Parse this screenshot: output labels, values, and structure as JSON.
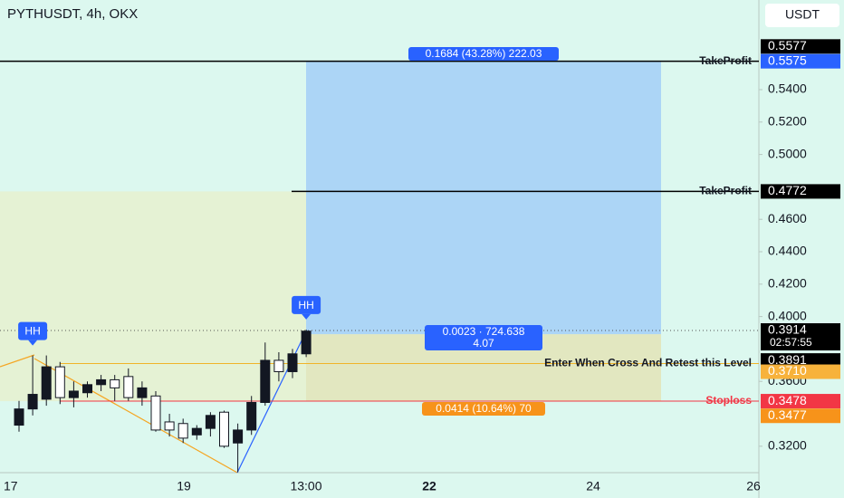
{
  "chart_data": {
    "type": "candlestick",
    "title": "PYTHUSDT, 4h, OKX",
    "currency": "USDT",
    "ylim": [
      0.3037,
      0.5953
    ],
    "yticks": [
      {
        "value": 0.32,
        "label": "0.3200"
      },
      {
        "value": 0.36,
        "label": "0.3600"
      },
      {
        "value": 0.4,
        "label": "0.4000"
      },
      {
        "value": 0.42,
        "label": "0.4200"
      },
      {
        "value": 0.44,
        "label": "0.4400"
      },
      {
        "value": 0.46,
        "label": "0.4600"
      },
      {
        "value": 0.5,
        "label": "0.5000"
      },
      {
        "value": 0.52,
        "label": "0.5200"
      },
      {
        "value": 0.54,
        "label": "0.5400"
      }
    ],
    "x_labels": [
      "17",
      "19",
      "13:00",
      "22",
      "24",
      "26"
    ],
    "up_color": "#131722",
    "down_color": "#ffffff",
    "open": [
      0.333,
      0.343,
      0.349,
      0.369,
      0.35,
      0.353,
      0.358,
      0.361,
      0.363,
      0.35,
      0.351,
      0.335,
      0.334,
      0.327,
      0.331,
      0.341,
      0.322,
      0.33,
      0.347,
      0.373,
      0.366,
      0.377
    ],
    "high": [
      0.348,
      0.376,
      0.376,
      0.372,
      0.36,
      0.36,
      0.364,
      0.364,
      0.368,
      0.36,
      0.354,
      0.34,
      0.337,
      0.333,
      0.341,
      0.342,
      0.334,
      0.351,
      0.384,
      0.378,
      0.38,
      0.392
    ],
    "low": [
      0.329,
      0.339,
      0.345,
      0.346,
      0.344,
      0.35,
      0.354,
      0.348,
      0.348,
      0.345,
      0.329,
      0.326,
      0.322,
      0.324,
      0.326,
      0.319,
      0.304,
      0.327,
      0.345,
      0.36,
      0.362,
      0.375
    ],
    "close": [
      0.343,
      0.352,
      0.369,
      0.35,
      0.354,
      0.358,
      0.361,
      0.356,
      0.35,
      0.356,
      0.33,
      0.33,
      0.325,
      0.331,
      0.339,
      0.32,
      0.33,
      0.347,
      0.373,
      0.366,
      0.377,
      0.391
    ],
    "levels": [
      {
        "name": "TakeProfit",
        "value": 0.5575,
        "color": "#000000"
      },
      {
        "name": "TakeProfit",
        "value": 0.4772,
        "color": "#000000"
      },
      {
        "name": "Enter When Cross And Retest this Level",
        "value": 0.371,
        "color": "#f0b429"
      },
      {
        "name": "Stoploss",
        "value": 0.3478,
        "color": "#f23645"
      }
    ],
    "price_tags": [
      {
        "value": 0.5577,
        "label": "0.5577",
        "color": "#000000"
      },
      {
        "value": 0.5575,
        "label": "0.5575",
        "color": "#2962ff"
      },
      {
        "value": 0.4772,
        "label": "0.4772",
        "color": "#000000"
      },
      {
        "value": 0.3914,
        "label": "0.3914",
        "color": "#000000"
      },
      {
        "value": 0.3891,
        "label": "0.3891",
        "color": "#000000"
      },
      {
        "value": 0.371,
        "label": "0.3710",
        "color": "#f7b23b"
      },
      {
        "value": 0.3478,
        "label": "0.3478",
        "color": "#f23645"
      },
      {
        "value": 0.3477,
        "label": "0.3477",
        "color": "#f7931a"
      }
    ],
    "countdown": "02:57:55",
    "position_labels": [
      "0.1684 (43.28%) 222.03",
      "0.0023 · 724.638",
      "4.07",
      "0.0414 (10.64%) 70"
    ],
    "markers": [
      "HH",
      "HH"
    ]
  }
}
